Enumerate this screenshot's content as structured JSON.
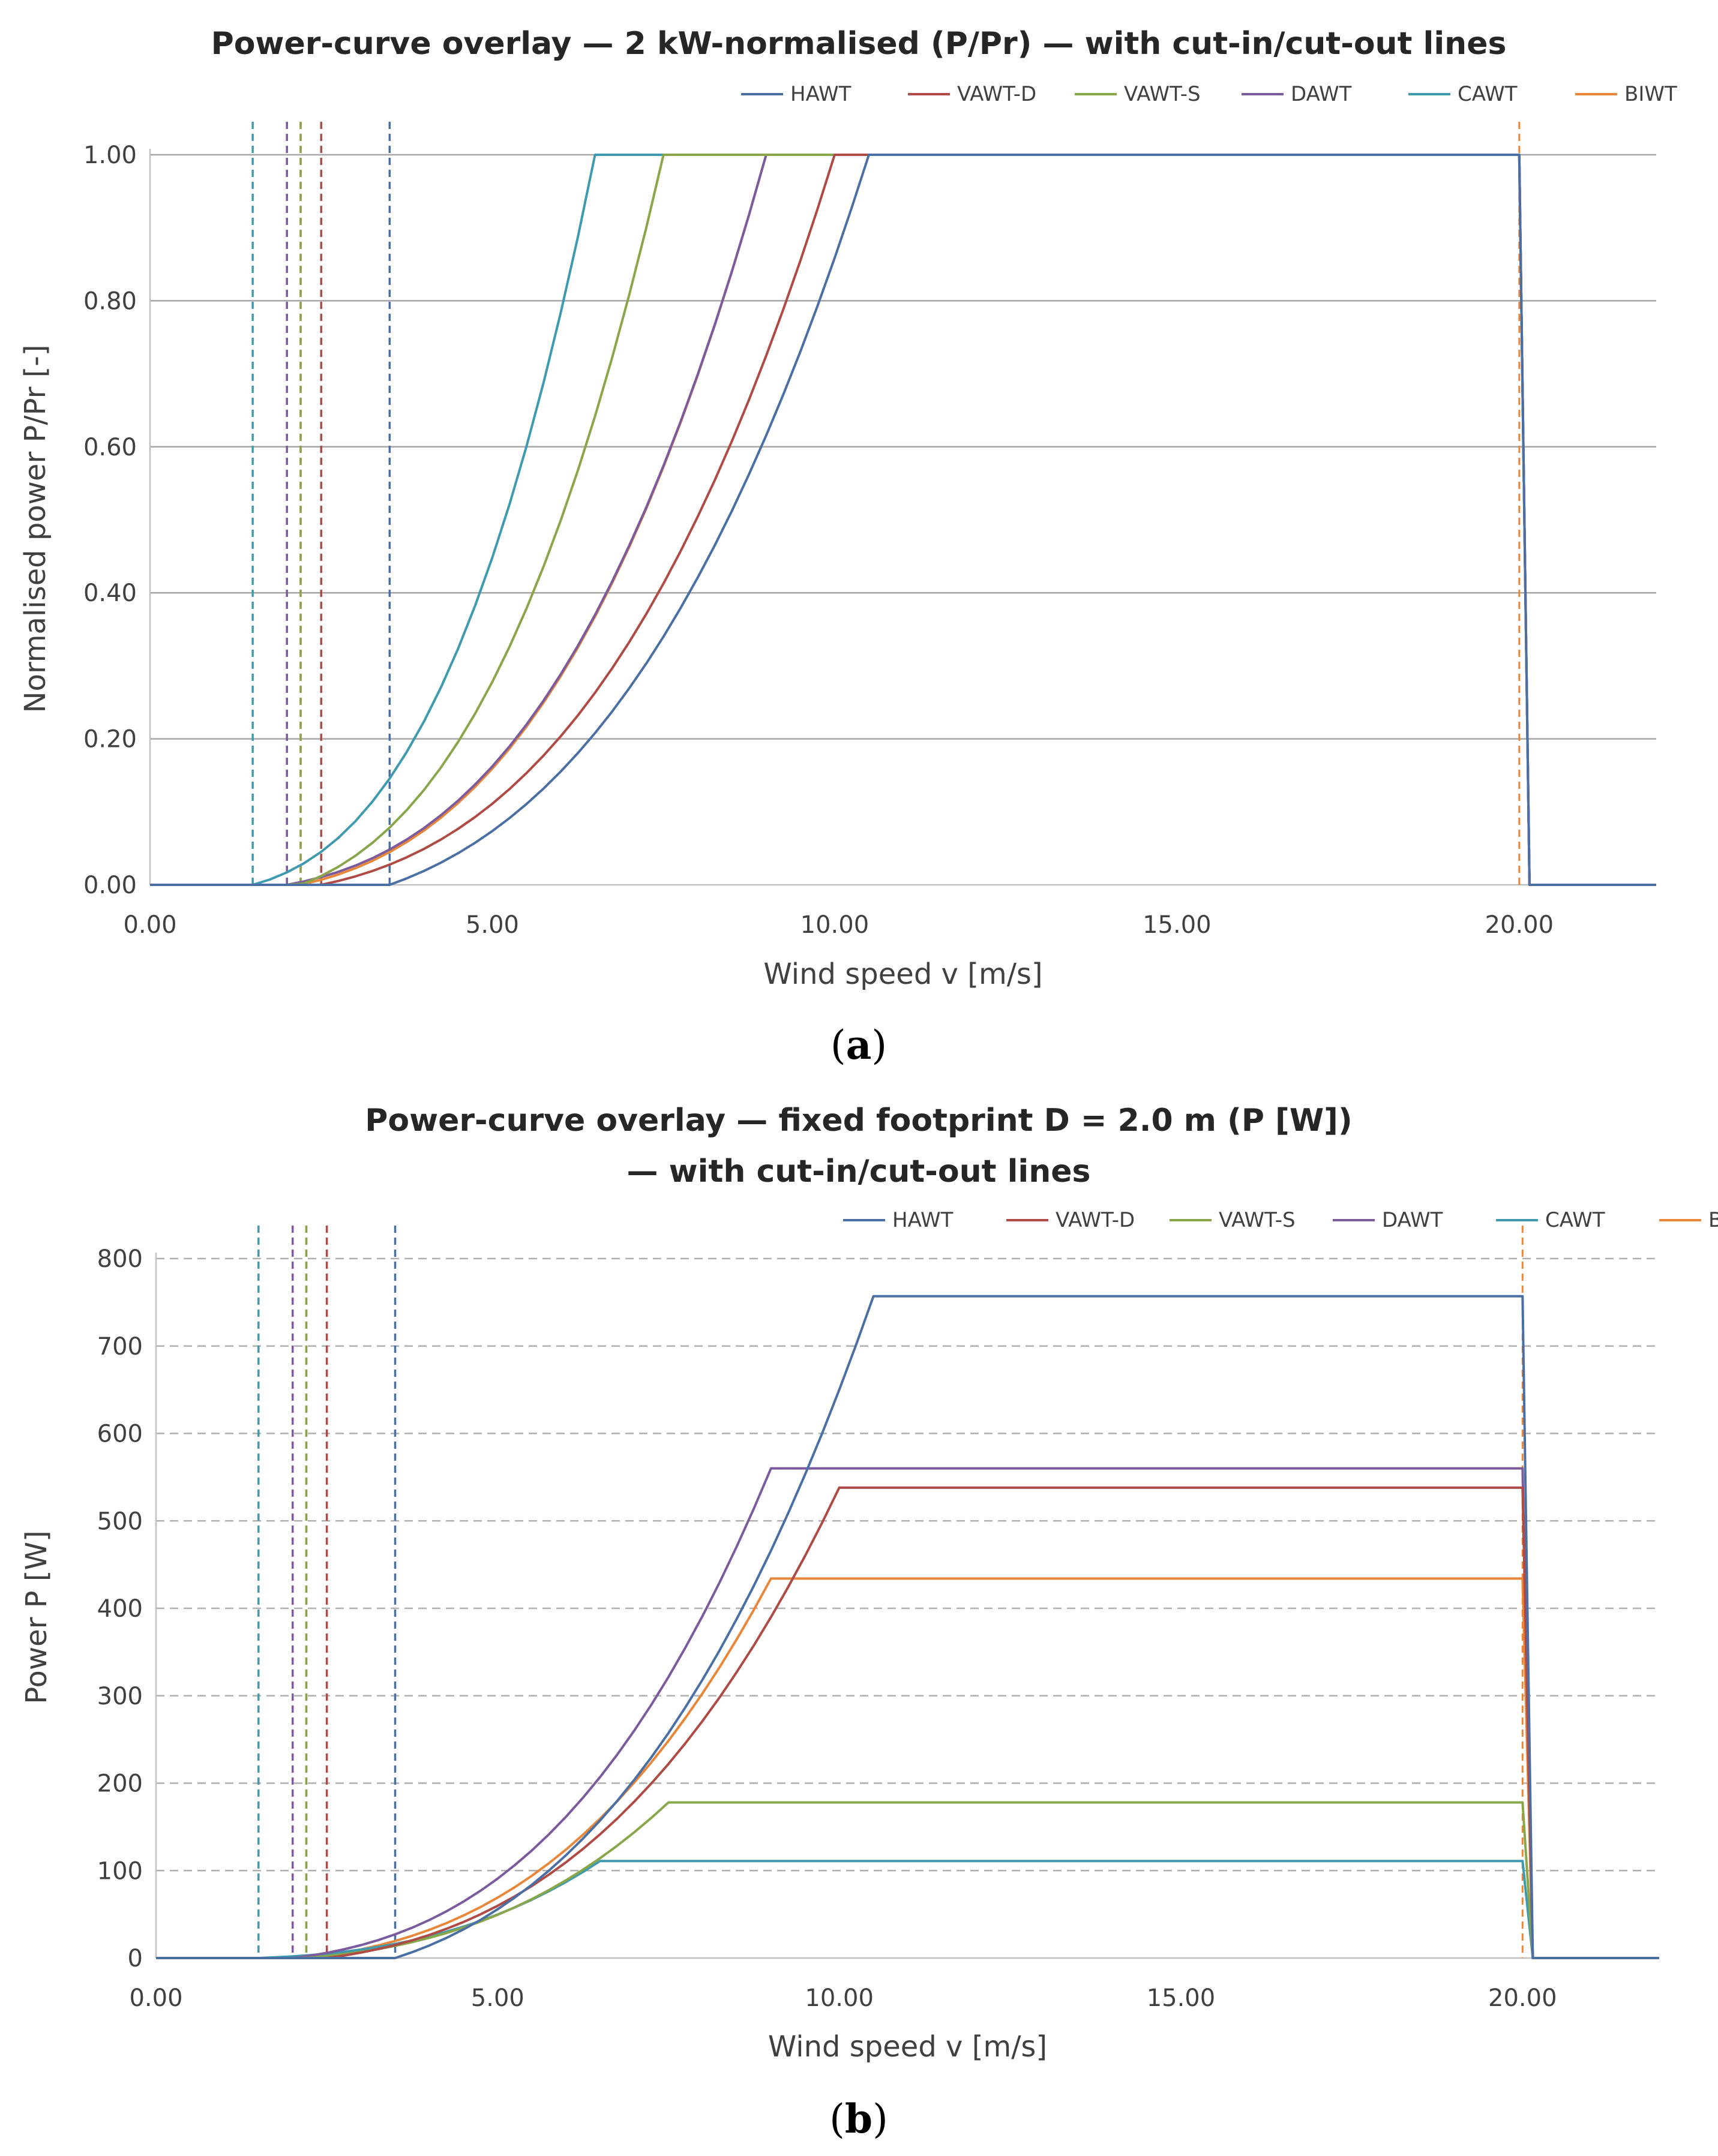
{
  "chart_data": [
    {
      "type": "line",
      "title": "Power-curve overlay — 2 kW-normalised (P/Pr) — with cut-in/cut-out lines",
      "xlabel": "Wind speed v [m/s]",
      "ylabel": "Normalised power P/Pr [-]",
      "xlim": [
        0,
        22
      ],
      "ylim": [
        0,
        1
      ],
      "xticks": [
        "0.00",
        "5.00",
        "10.00",
        "15.00",
        "20.00"
      ],
      "yticks": [
        "0.00",
        "0.20",
        "0.40",
        "0.60",
        "0.80",
        "1.00"
      ],
      "grid": "horizontal-solid",
      "legend_position": "top",
      "caption_open": "(",
      "caption_letter": "a",
      "caption_close": ")",
      "series": [
        {
          "name": "HAWT",
          "color": "#4a6fa5",
          "cut_in": 3.5,
          "rated_speed": 10.5,
          "rated_value": 1.0,
          "cut_out": 20.0
        },
        {
          "name": "VAWT-D",
          "color": "#b04a45",
          "cut_in": 2.5,
          "rated_speed": 10.0,
          "rated_value": 1.0,
          "cut_out": 20.0
        },
        {
          "name": "VAWT-S",
          "color": "#8aa64a",
          "cut_in": 2.2,
          "rated_speed": 7.5,
          "rated_value": 1.0,
          "cut_out": 20.0
        },
        {
          "name": "DAWT",
          "color": "#7b5a9e",
          "cut_in": 2.0,
          "rated_speed": 9.0,
          "rated_value": 1.0,
          "cut_out": 20.0
        },
        {
          "name": "CAWT",
          "color": "#3e9aae",
          "cut_in": 1.5,
          "rated_speed": 6.5,
          "rated_value": 1.0,
          "cut_out": 20.0
        },
        {
          "name": "BIWT",
          "color": "#e8873a",
          "cut_in": 2.2,
          "rated_speed": 9.0,
          "rated_value": 1.0,
          "cut_out": 20.0
        }
      ]
    },
    {
      "type": "line",
      "title": "Power-curve overlay — fixed footprint D = 2.0 m (P [W])",
      "title_line2": "— with cut-in/cut-out lines",
      "xlabel": "Wind speed v [m/s]",
      "ylabel": "Power P [W]",
      "xlim": [
        0,
        22
      ],
      "ylim": [
        0,
        800
      ],
      "xticks": [
        "0.00",
        "5.00",
        "10.00",
        "15.00",
        "20.00"
      ],
      "yticks": [
        "0",
        "100",
        "200",
        "300",
        "400",
        "500",
        "600",
        "700",
        "800"
      ],
      "grid": "horizontal-dashed",
      "legend_position": "top",
      "caption_open": "(",
      "caption_letter": "b",
      "caption_close": ")",
      "series": [
        {
          "name": "HAWT",
          "color": "#4a6fa5",
          "cut_in": 3.5,
          "rated_speed": 10.5,
          "rated_value": 757,
          "cut_out": 20.0
        },
        {
          "name": "VAWT-D",
          "color": "#b04a45",
          "cut_in": 2.5,
          "rated_speed": 10.0,
          "rated_value": 538,
          "cut_out": 20.0
        },
        {
          "name": "VAWT-S",
          "color": "#8aa64a",
          "cut_in": 2.2,
          "rated_speed": 7.5,
          "rated_value": 178,
          "cut_out": 20.0
        },
        {
          "name": "DAWT",
          "color": "#7b5a9e",
          "cut_in": 2.0,
          "rated_speed": 9.0,
          "rated_value": 560,
          "cut_out": 20.0
        },
        {
          "name": "CAWT",
          "color": "#3e9aae",
          "cut_in": 1.5,
          "rated_speed": 6.5,
          "rated_value": 111,
          "cut_out": 20.0
        },
        {
          "name": "BIWT",
          "color": "#e8873a",
          "cut_in": 2.2,
          "rated_speed": 9.0,
          "rated_value": 434,
          "cut_out": 20.0
        }
      ]
    }
  ]
}
